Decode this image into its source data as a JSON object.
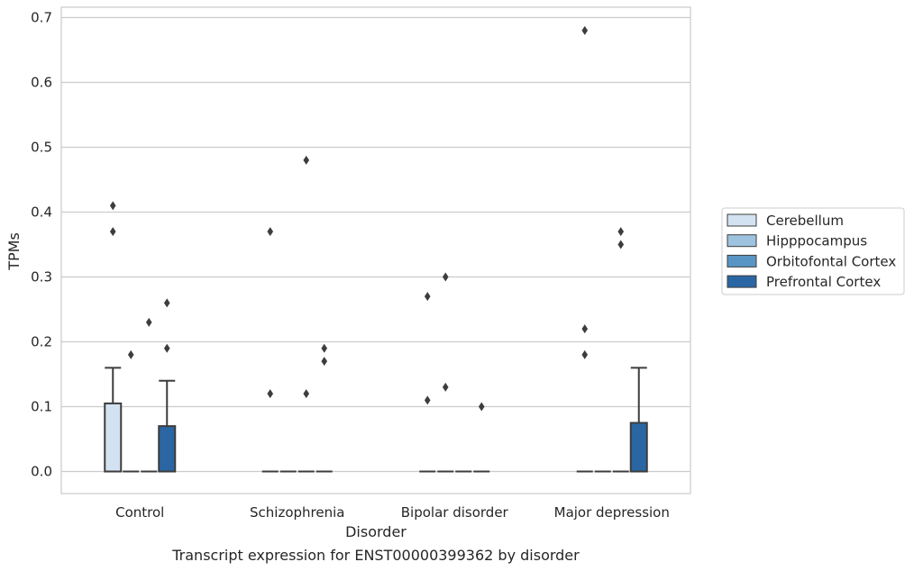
{
  "chart_data": {
    "type": "box",
    "caption": "Transcript expression for ENST00000399362 by disorder",
    "xlabel": "Disorder",
    "ylabel": "TPMs",
    "ylim": [
      -0.034,
      0.716
    ],
    "yticks": [
      0.0,
      0.1,
      0.2,
      0.3,
      0.4,
      0.5,
      0.6,
      0.7
    ],
    "ytick_labels": [
      "0.0",
      "0.1",
      "0.2",
      "0.3",
      "0.4",
      "0.5",
      "0.6",
      "0.7"
    ],
    "grid": "horizontal",
    "legend_position": "right",
    "categories": [
      "Control",
      "Schizophrenia",
      "Bipolar disorder",
      "Major depression"
    ],
    "series": [
      {
        "name": "Cerebellum",
        "color": "#d3e2f0",
        "boxes": [
          {
            "q1": 0.0,
            "median": 0.0,
            "q3": 0.105,
            "whisker_low": 0.0,
            "whisker_high": 0.16,
            "outliers": [
              0.41,
              0.37
            ]
          },
          {
            "q1": 0.0,
            "median": 0.0,
            "q3": 0.0,
            "whisker_low": 0.0,
            "whisker_high": 0.0,
            "outliers": [
              0.37,
              0.12
            ]
          },
          {
            "q1": 0.0,
            "median": 0.0,
            "q3": 0.0,
            "whisker_low": 0.0,
            "whisker_high": 0.0,
            "outliers": [
              0.27,
              0.11
            ]
          },
          {
            "q1": 0.0,
            "median": 0.0,
            "q3": 0.0,
            "whisker_low": 0.0,
            "whisker_high": 0.0,
            "outliers": [
              0.68,
              0.22,
              0.18
            ]
          }
        ]
      },
      {
        "name": "Hipppocampus",
        "color": "#9dc3de",
        "boxes": [
          {
            "q1": 0.0,
            "median": 0.0,
            "q3": 0.0,
            "whisker_low": 0.0,
            "whisker_high": 0.0,
            "outliers": [
              0.18
            ]
          },
          {
            "q1": 0.0,
            "median": 0.0,
            "q3": 0.0,
            "whisker_low": 0.0,
            "whisker_high": 0.0,
            "outliers": []
          },
          {
            "q1": 0.0,
            "median": 0.0,
            "q3": 0.0,
            "whisker_low": 0.0,
            "whisker_high": 0.0,
            "outliers": [
              0.3,
              0.13
            ]
          },
          {
            "q1": 0.0,
            "median": 0.0,
            "q3": 0.0,
            "whisker_low": 0.0,
            "whisker_high": 0.0,
            "outliers": []
          }
        ]
      },
      {
        "name": "Orbitofontal Cortex",
        "color": "#5895c4",
        "boxes": [
          {
            "q1": 0.0,
            "median": 0.0,
            "q3": 0.0,
            "whisker_low": 0.0,
            "whisker_high": 0.0,
            "outliers": [
              0.23
            ]
          },
          {
            "q1": 0.0,
            "median": 0.0,
            "q3": 0.0,
            "whisker_low": 0.0,
            "whisker_high": 0.0,
            "outliers": [
              0.48,
              0.12
            ]
          },
          {
            "q1": 0.0,
            "median": 0.0,
            "q3": 0.0,
            "whisker_low": 0.0,
            "whisker_high": 0.0,
            "outliers": []
          },
          {
            "q1": 0.0,
            "median": 0.0,
            "q3": 0.0,
            "whisker_low": 0.0,
            "whisker_high": 0.0,
            "outliers": [
              0.37,
              0.35
            ]
          }
        ]
      },
      {
        "name": "Prefrontal Cortex",
        "color": "#2a66a3",
        "boxes": [
          {
            "q1": 0.0,
            "median": 0.0,
            "q3": 0.07,
            "whisker_low": 0.0,
            "whisker_high": 0.14,
            "outliers": [
              0.26,
              0.19
            ]
          },
          {
            "q1": 0.0,
            "median": 0.0,
            "q3": 0.0,
            "whisker_low": 0.0,
            "whisker_high": 0.0,
            "outliers": [
              0.19,
              0.17
            ]
          },
          {
            "q1": 0.0,
            "median": 0.0,
            "q3": 0.0,
            "whisker_low": 0.0,
            "whisker_high": 0.0,
            "outliers": [
              0.1
            ]
          },
          {
            "q1": 0.0,
            "median": 0.0,
            "q3": 0.075,
            "whisker_low": 0.0,
            "whisker_high": 0.16,
            "outliers": []
          }
        ]
      }
    ]
  }
}
